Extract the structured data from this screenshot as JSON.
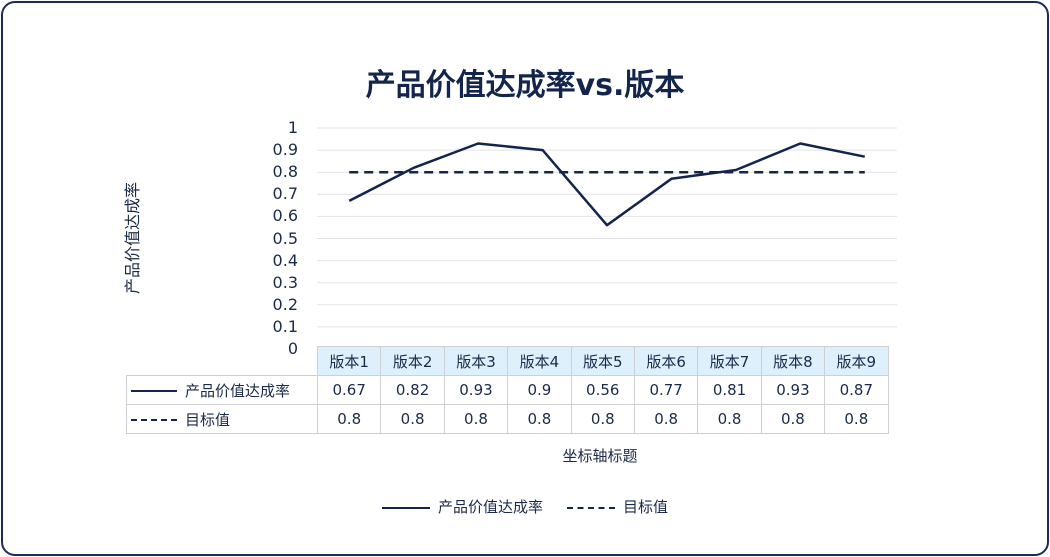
{
  "chart_data": {
    "type": "line",
    "title": "产品价值达成率vs.版本",
    "ylabel": "产品价值达成率",
    "xlabel": "坐标轴标题",
    "ylim": [
      0,
      1
    ],
    "yticks": [
      "1",
      "0.9",
      "0.8",
      "0.7",
      "0.6",
      "0.5",
      "0.4",
      "0.3",
      "0.2",
      "0.1",
      "0"
    ],
    "categories": [
      "版本1",
      "版本2",
      "版本3",
      "版本4",
      "版本5",
      "版本6",
      "版本7",
      "版本8",
      "版本9"
    ],
    "series": [
      {
        "name": "产品价值达成率",
        "style": "solid",
        "color": "#14254d",
        "values": [
          0.67,
          0.82,
          0.93,
          0.9,
          0.56,
          0.77,
          0.81,
          0.93,
          0.87
        ],
        "labels": [
          "0.67",
          "0.82",
          "0.93",
          "0.9",
          "0.56",
          "0.77",
          "0.81",
          "0.93",
          "0.87"
        ]
      },
      {
        "name": "目标值",
        "style": "dashed",
        "color": "#14254d",
        "values": [
          0.8,
          0.8,
          0.8,
          0.8,
          0.8,
          0.8,
          0.8,
          0.8,
          0.8
        ],
        "labels": [
          "0.8",
          "0.8",
          "0.8",
          "0.8",
          "0.8",
          "0.8",
          "0.8",
          "0.8",
          "0.8"
        ]
      }
    ],
    "grid": true,
    "legend": "bottom",
    "data_table": true
  }
}
